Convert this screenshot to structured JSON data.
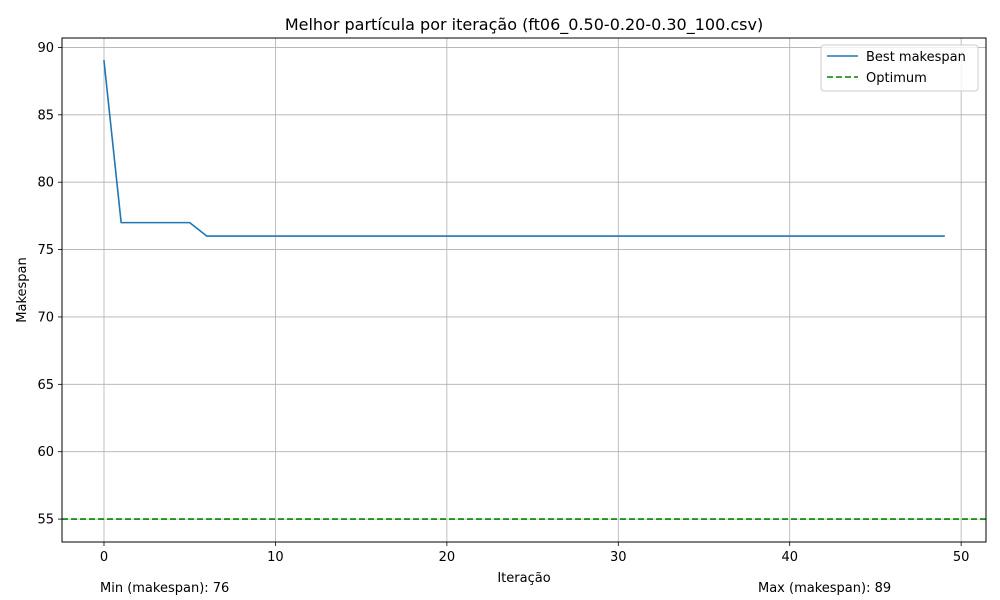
{
  "chart_data": {
    "type": "line",
    "title": "Melhor partícula por iteração (ft06_0.50-0.20-0.30_100.csv)",
    "xlabel": "Iteração",
    "ylabel": "Makespan",
    "xlim": [
      -2.45,
      51.45
    ],
    "ylim": [
      53.3,
      90.7
    ],
    "xticks": [
      0,
      10,
      20,
      30,
      40,
      50
    ],
    "yticks": [
      55,
      60,
      65,
      70,
      75,
      80,
      85,
      90
    ],
    "grid": true,
    "legend_position": "top-right",
    "series": [
      {
        "name": "Best makespan",
        "color": "#1f77b4",
        "style": "solid",
        "x": [
          0,
          1,
          2,
          3,
          4,
          5,
          6,
          7,
          8,
          9,
          10,
          11,
          12,
          13,
          14,
          15,
          16,
          17,
          18,
          19,
          20,
          21,
          22,
          23,
          24,
          25,
          26,
          27,
          28,
          29,
          30,
          31,
          32,
          33,
          34,
          35,
          36,
          37,
          38,
          39,
          40,
          41,
          42,
          43,
          44,
          45,
          46,
          47,
          48,
          49
        ],
        "values": [
          89,
          77,
          77,
          77,
          77,
          77,
          76,
          76,
          76,
          76,
          76,
          76,
          76,
          76,
          76,
          76,
          76,
          76,
          76,
          76,
          76,
          76,
          76,
          76,
          76,
          76,
          76,
          76,
          76,
          76,
          76,
          76,
          76,
          76,
          76,
          76,
          76,
          76,
          76,
          76,
          76,
          76,
          76,
          76,
          76,
          76,
          76,
          76,
          76,
          76
        ]
      },
      {
        "name": "Optimum",
        "color": "#008000",
        "style": "dashed",
        "horizontal_line": 55
      }
    ]
  },
  "footer": {
    "min_text": "Min (makespan): 76",
    "max_text": "Max (makespan): 89"
  }
}
